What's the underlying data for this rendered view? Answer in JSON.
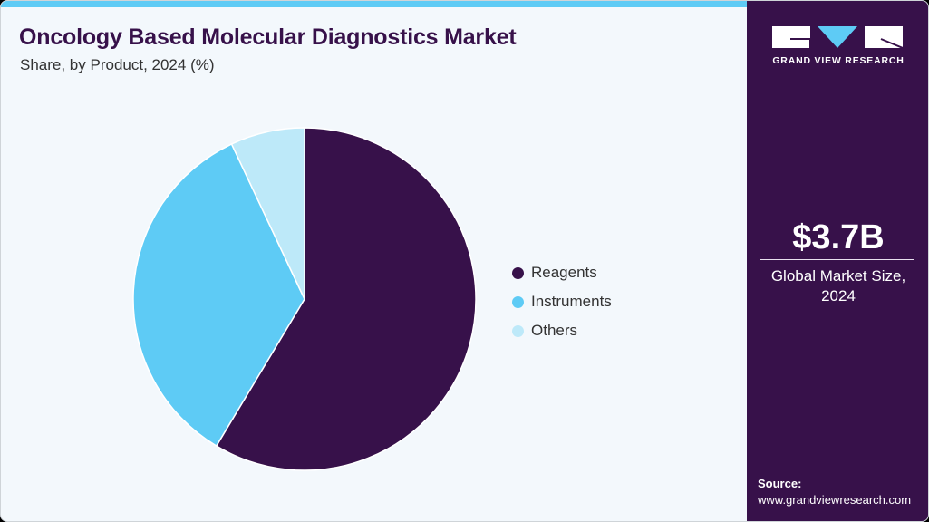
{
  "header": {
    "title": "Oncology Based Molecular Diagnostics Market",
    "subtitle": "Share, by Product, 2024 (%)"
  },
  "brand": {
    "name": "GRAND VIEW RESEARCH",
    "colors": {
      "primary": "#37114a",
      "accent": "#5ecbf5",
      "light": "#bde9f9"
    }
  },
  "sidebar": {
    "market_size": "$3.7B",
    "caption_line1": "Global Market Size,",
    "caption_line2": "2024",
    "source_label": "Source:",
    "source_url": "www.grandviewresearch.com"
  },
  "legend": [
    {
      "label": "Reagents",
      "color": "#37114a"
    },
    {
      "label": "Instruments",
      "color": "#5ecbf5"
    },
    {
      "label": "Others",
      "color": "#bde9f9"
    }
  ],
  "chart_data": {
    "type": "pie",
    "title": "Oncology Based Molecular Diagnostics Market",
    "subtitle": "Share, by Product, 2024 (%)",
    "categories": [
      "Reagents",
      "Instruments",
      "Others"
    ],
    "values": [
      58.6,
      34.4,
      7.0
    ],
    "colors": [
      "#37114a",
      "#5ecbf5",
      "#bde9f9"
    ],
    "start_angle": "12 o'clock, clockwise",
    "legend_position": "right"
  }
}
